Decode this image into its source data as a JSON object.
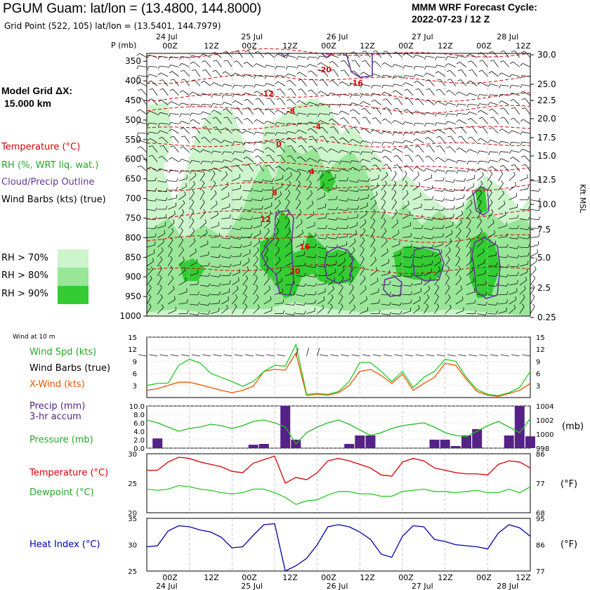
{
  "header": {
    "title": "PGUM Guam:  lat/lon = (13.4800, 144.8000)",
    "subtitle": "Grid Point (522, 105) lat/lon = (13.5401, 144.7979)",
    "cycle_line1": "MMM WRF Forecast Cycle:",
    "cycle_line2": "2022-07-23 / 12  Z"
  },
  "model_grid": {
    "line1": "Model Grid ΔX:",
    "line2": "15.000 km"
  },
  "legend": {
    "temperature": "Temperature (°C)",
    "rh": "RH (%, WRT liq. wat.)",
    "cloud": "Cloud/Precip Outline",
    "barbs": "Wind Barbs (kts) (true)",
    "rh70": "RH > 70%",
    "rh80": "RH > 80%",
    "rh90": "RH > 90%"
  },
  "colors": {
    "temp": "#dd0000",
    "rh70": "#ccf5cc",
    "rh80": "#99e699",
    "rh90": "#33cc33",
    "cloud": "#663399",
    "wind": "#22cc22",
    "xwind": "#ee5500",
    "precip": "#552288",
    "pressure": "#22bb22",
    "dew": "#22cc22",
    "heat": "#0000aa"
  },
  "time_axis": {
    "top_dates": [
      "24 Jul",
      "25 Jul",
      "26 Jul",
      "27 Jul",
      "28 Jul"
    ],
    "bottom_dates": [
      "24 Jul",
      "25 Jul",
      "26 Jul",
      "27 Jul",
      "28 Jul"
    ],
    "hour_labels": [
      "00Z",
      "12Z",
      "00Z",
      "12Z",
      "00Z",
      "12Z",
      "00Z",
      "12Z",
      "00Z",
      "12Z"
    ]
  },
  "cross_section": {
    "p_label": "P (mb)",
    "right_label": "Kft MSL",
    "temp_labels": [
      "-20",
      "-16",
      "-12",
      "-8",
      "-4",
      "0",
      "4",
      "8",
      "12",
      "16",
      "20"
    ]
  },
  "panels": {
    "wind_at_10m": "Wind at 10 m",
    "wind_spd": "Wind Spd (kts)",
    "wind_barbs": "Wind Barbs (true)",
    "xwind": "X-Wind (kts)",
    "precip1": "Precip (mm)",
    "precip2": "3-hr accum",
    "pressure": "Pressure (mb)",
    "pressure_unit": "(mb)",
    "temperature": "Temperature (°C)",
    "dewpoint": "Dewpoint (°C)",
    "temp_unit": "(°F)",
    "heat_index": "Heat Index (°C)",
    "heat_unit": "(°F)"
  },
  "chart_data": [
    {
      "type": "heatmap",
      "title": "Vertical cross-section: temperature, RH, cloud outline, wind barbs",
      "ylabel": "P (mb)",
      "yticks": [
        350,
        400,
        450,
        500,
        550,
        600,
        650,
        700,
        750,
        800,
        850,
        900,
        950,
        1000
      ],
      "y2label": "Kft MSL",
      "y2ticks": [
        "30.0",
        "25.0",
        "22.5",
        "20.0",
        "17.5",
        "15.0",
        "12.5",
        "10.0",
        "7.5",
        "5.0",
        "2.5",
        "0.25"
      ],
      "isotherms_c": [
        -20,
        -16,
        -12,
        -8,
        -4,
        0,
        4,
        8,
        12,
        16,
        20
      ],
      "isotherm_pressure_mb": [
        330,
        395,
        440,
        470,
        520,
        560,
        620,
        670,
        740,
        800,
        880
      ]
    },
    {
      "type": "line",
      "title": "Wind at 10 m",
      "x_hours": [
        0,
        3,
        6,
        9,
        12,
        15,
        18,
        21,
        24,
        27,
        30,
        33,
        36,
        39,
        42,
        45,
        48,
        51,
        54,
        57,
        60,
        63,
        66,
        69,
        72,
        75,
        78,
        81,
        84,
        87,
        90,
        93,
        96,
        99,
        102,
        105,
        108
      ],
      "ylim": [
        0,
        15
      ],
      "yticks": [
        3,
        6,
        9,
        12,
        15
      ],
      "series": [
        {
          "name": "Wind Spd (kts)",
          "values": [
            3,
            3.5,
            3.6,
            8,
            9.5,
            8.6,
            6,
            5,
            4,
            2.8,
            4,
            6.5,
            8,
            7.8,
            13.2,
            0.8,
            1,
            0.8,
            1.5,
            4,
            8.7,
            8.7,
            6.5,
            4,
            6.5,
            2.5,
            5,
            6.5,
            9.5,
            9,
            5,
            2,
            0.8,
            0.5,
            1.2,
            2.5,
            6.5
          ]
        },
        {
          "name": "X-Wind (kts)",
          "values": [
            1.8,
            2.2,
            3,
            3.8,
            3.8,
            3.2,
            2.5,
            1.8,
            1.2,
            1.8,
            2.8,
            6.5,
            7,
            6.8,
            11,
            0.5,
            0.8,
            0.6,
            1.2,
            3,
            6.5,
            7,
            5.5,
            3.5,
            5.8,
            1.8,
            3.5,
            5,
            8.5,
            8,
            4.5,
            1.5,
            0.6,
            0.3,
            1,
            1.8,
            3.5
          ]
        }
      ]
    },
    {
      "type": "bar",
      "title": "Precip (mm) 3-hr accum / Pressure (mb)",
      "ylim": [
        0,
        10
      ],
      "yticks": [
        "0.0",
        "2.0",
        "4.0",
        "6.0",
        "8.0",
        "10.0"
      ],
      "y2ticks": [
        "998",
        "1000",
        "1002",
        "1004"
      ],
      "precip_mm": [
        0,
        2.3,
        0,
        0,
        0,
        0,
        0,
        0,
        0,
        0,
        0.8,
        1,
        0,
        10,
        2,
        0,
        0,
        0,
        0,
        1,
        3,
        3,
        0,
        0,
        0,
        0,
        0,
        2,
        2,
        0.5,
        3,
        4.5,
        0,
        0,
        3,
        10,
        2.8
      ],
      "pressure_mb": [
        1002,
        1001.6,
        1001,
        1000.4,
        1000.8,
        1001,
        1001.4,
        1001.2,
        1000.8,
        1001.2,
        1001.8,
        1002,
        1001.6,
        1001,
        998.6,
        1000.2,
        1001,
        1001.6,
        1002,
        1001.4,
        1000.6,
        999.8,
        1000.2,
        1000.8,
        1001.2,
        1001.4,
        1001.6,
        1001,
        1000.2,
        999.8,
        999.6,
        1000.4,
        1001.2,
        1001.8,
        1001,
        1000.2,
        1002.2
      ]
    },
    {
      "type": "line",
      "title": "Temperature / Dewpoint",
      "ylim": [
        20,
        30
      ],
      "yticks": [
        20,
        25,
        30
      ],
      "y2ticks": [
        68,
        77,
        86
      ],
      "series": [
        {
          "name": "Temperature (°C)",
          "values": [
            27.2,
            27.2,
            28.6,
            29.4,
            29.2,
            28.6,
            28.2,
            27.8,
            27,
            26.8,
            28.4,
            29,
            29.6,
            25,
            26,
            25.6,
            26.8,
            28.8,
            29.2,
            28.8,
            28.2,
            27.6,
            26.4,
            26.2,
            28.6,
            29.2,
            28.8,
            27.6,
            27.2,
            26.8,
            26.6,
            26.6,
            26.4,
            28.2,
            28.8,
            28.6,
            27.6
          ]
        },
        {
          "name": "Dewpoint (°C)",
          "values": [
            24,
            23.8,
            24,
            24.6,
            24.4,
            24,
            23.8,
            23.4,
            23.2,
            23.4,
            24,
            24,
            23.4,
            22.6,
            21.4,
            22,
            22.2,
            23,
            23.6,
            23.6,
            23.2,
            23.2,
            22.8,
            22.8,
            23.6,
            23.8,
            24,
            23.6,
            23.6,
            23.4,
            23.6,
            23.8,
            23.4,
            23.4,
            24,
            23.4,
            24.4
          ]
        }
      ]
    },
    {
      "type": "line",
      "title": "Heat Index",
      "ylim": [
        25,
        35
      ],
      "yticks": [
        25,
        30,
        35
      ],
      "y2ticks": [
        77,
        86,
        95
      ],
      "series": [
        {
          "name": "Heat Index (°C)",
          "values": [
            29.6,
            29.8,
            32.6,
            33.6,
            33.4,
            32.8,
            32.4,
            31.4,
            29.4,
            29.6,
            31.8,
            33.8,
            34,
            25,
            26,
            27.4,
            30,
            33.4,
            33.8,
            33.4,
            32.4,
            31,
            28.2,
            27.6,
            31.6,
            33.6,
            33.4,
            31,
            30.6,
            30,
            29.8,
            29.6,
            29.2,
            32.2,
            33.8,
            33.2,
            31.6
          ]
        }
      ]
    }
  ]
}
